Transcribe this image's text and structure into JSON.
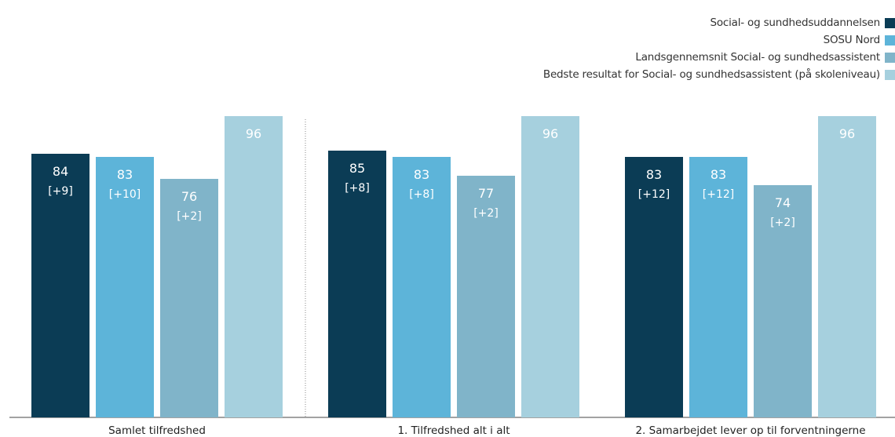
{
  "chart_data": {
    "type": "bar",
    "categories": [
      "Samlet tilfredshed",
      "1. Tilfredshed alt i alt",
      "2. Samarbejdet lever op til forventningerne"
    ],
    "series": [
      {
        "name": "Social- og sundhedsuddannelsen",
        "color": "#0b3c55",
        "values": [
          84,
          85,
          83
        ],
        "labels": [
          "[+9]",
          "[+8]",
          "[+12]"
        ]
      },
      {
        "name": "SOSU Nord",
        "color": "#5db4d9",
        "values": [
          83,
          83,
          83
        ],
        "labels": [
          "[+10]",
          "[+8]",
          "[+12]"
        ]
      },
      {
        "name": "Landsgennemsnit Social- og sundhedsassistent",
        "color": "#80b4c9",
        "values": [
          76,
          77,
          74
        ],
        "labels": [
          "[+2]",
          "[+2]",
          "[+2]"
        ]
      },
      {
        "name": "Bedste resultat for Social- og sundhedsassistent (på skoleniveau)",
        "color": "#a6d0de",
        "values": [
          96,
          96,
          96
        ],
        "labels": [
          "",
          "",
          ""
        ]
      }
    ],
    "ylim": [
      0,
      110
    ],
    "grid": false,
    "legend_position": "top-right",
    "separator_after_category": 0
  }
}
